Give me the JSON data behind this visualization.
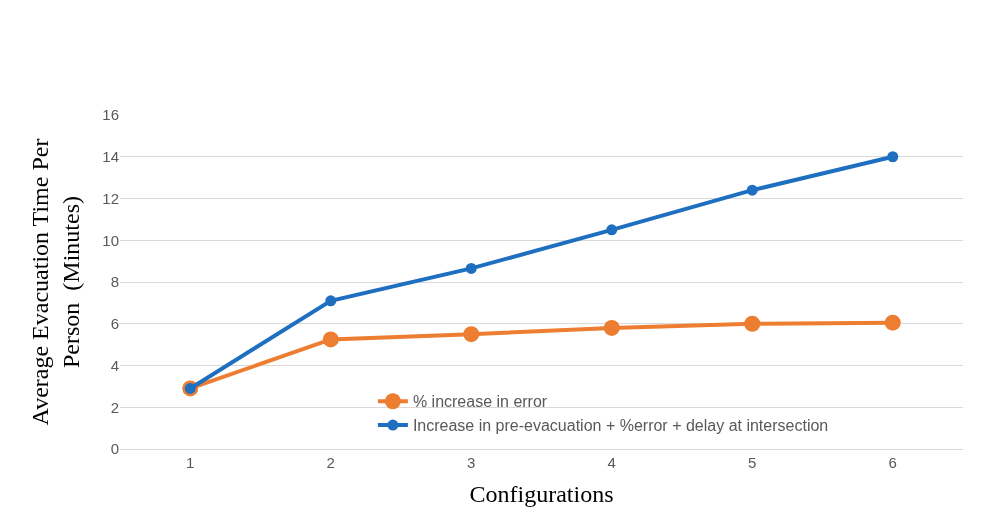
{
  "chart_data": {
    "type": "line",
    "xlabel": "Configurations",
    "ylabel": "Average Evacuation Time Per\nPerson  (Minutes)",
    "categories": [
      "1",
      "2",
      "3",
      "4",
      "5",
      "6"
    ],
    "series": [
      {
        "name": "% increase in error",
        "color": "#ed7d31",
        "values": [
          2.9,
          5.25,
          5.5,
          5.8,
          6.0,
          6.05
        ]
      },
      {
        "name": "Increase in pre-evacuation + %error + delay at intersection",
        "color": "#1f6fc0",
        "values": [
          2.9,
          7.1,
          8.65,
          10.5,
          12.4,
          14.0
        ]
      }
    ],
    "ylim": [
      0,
      16
    ],
    "yticks": [
      0,
      2,
      4,
      6,
      8,
      10,
      12,
      14,
      16
    ],
    "grid": "y",
    "legend": "bottom",
    "marker": "circle",
    "line_style": "solid"
  }
}
